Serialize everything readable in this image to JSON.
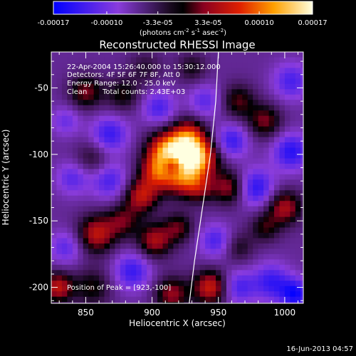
{
  "chart_data": {
    "type": "heatmap",
    "title": "Reconstructed RHESSI Image",
    "xlabel": "Heliocentric X (arcsec)",
    "ylabel": "Heliocentric Y (arcsec)",
    "xlim": [
      824,
      1014
    ],
    "ylim": [
      -212,
      -23
    ],
    "x_ticks": [
      850,
      900,
      950,
      1000
    ],
    "y_ticks": [
      -50,
      -100,
      -150,
      -200
    ],
    "colorbar": {
      "range": [
        -0.00017,
        0.00017
      ],
      "tick_values": [
        -0.00017,
        -0.0001,
        -3.3e-05,
        3.3e-05,
        0.0001,
        0.00017
      ],
      "tick_labels": [
        "-0.00017",
        "-0.00010",
        "-3.3e-05",
        "3.3e-05",
        "0.00010",
        "0.00017"
      ],
      "unit_label": "(photons cm",
      "unit_exp1": "-2",
      "unit_mid": " s",
      "unit_exp2": "-1",
      "unit_mid2": " asec",
      "unit_exp3": "-2",
      "unit_close": ")"
    },
    "annotations": {
      "time_range": "22-Apr-2004 15:26:40.000 to 15:30:12.000",
      "detectors": "Detectors: 4F 5F 6F 7F 8F, Att 0",
      "energy": "Energy Range: 12.0 - 25.0 keV",
      "method": "Clean",
      "total_counts": "Total counts: 2.43E+03",
      "peak": "Position of Peak = [923,-100]"
    },
    "peak": [
      923,
      -100
    ],
    "limb_curve": [
      [
        950,
        -23
      ],
      [
        948,
        -60
      ],
      [
        944,
        -100
      ],
      [
        938,
        -140
      ],
      [
        932,
        -180
      ],
      [
        928,
        -212
      ]
    ],
    "blobs": [
      {
        "x": 923,
        "y": -100,
        "v": 0.00017,
        "s": 11
      },
      {
        "x": 937,
        "y": -103,
        "v": 0.00012,
        "s": 10
      },
      {
        "x": 909,
        "y": -97,
        "v": 0.00011,
        "s": 10
      },
      {
        "x": 920,
        "y": -117,
        "v": 0.00011,
        "s": 10
      },
      {
        "x": 903,
        "y": -113,
        "v": 0.0001,
        "s": 9
      },
      {
        "x": 892,
        "y": -131,
        "v": 0.00011,
        "s": 9
      },
      {
        "x": 928,
        "y": -85,
        "v": 9e-05,
        "s": 9
      },
      {
        "x": 916,
        "y": -108,
        "v": -0.00012,
        "s": 6
      },
      {
        "x": 935,
        "y": -125,
        "v": 8e-05,
        "s": 8
      },
      {
        "x": 958,
        "y": -125,
        "v": 9e-05,
        "s": 9
      },
      {
        "x": 850,
        "y": -53,
        "v": 8e-05,
        "s": 9
      },
      {
        "x": 878,
        "y": -55,
        "v": 6e-05,
        "s": 9
      },
      {
        "x": 855,
        "y": -103,
        "v": 5e-05,
        "s": 9
      },
      {
        "x": 840,
        "y": -118,
        "v": -6e-05,
        "s": 9
      },
      {
        "x": 868,
        "y": -85,
        "v": -8e-05,
        "s": 10
      },
      {
        "x": 868,
        "y": -120,
        "v": -7e-05,
        "s": 10
      },
      {
        "x": 858,
        "y": -160,
        "v": 0.00011,
        "s": 10
      },
      {
        "x": 878,
        "y": -150,
        "v": 7e-05,
        "s": 9
      },
      {
        "x": 902,
        "y": -165,
        "v": 0.0001,
        "s": 9
      },
      {
        "x": 920,
        "y": -155,
        "v": 7e-05,
        "s": 8
      },
      {
        "x": 885,
        "y": -188,
        "v": -8e-05,
        "s": 10
      },
      {
        "x": 835,
        "y": -170,
        "v": -6e-05,
        "s": 9
      },
      {
        "x": 855,
        "y": -200,
        "v": 6e-05,
        "s": 10
      },
      {
        "x": 829,
        "y": -200,
        "v": 0.00011,
        "s": 8
      },
      {
        "x": 915,
        "y": -205,
        "v": 9e-05,
        "s": 9
      },
      {
        "x": 944,
        "y": -200,
        "v": 0.00012,
        "s": 9
      },
      {
        "x": 965,
        "y": -200,
        "v": -7e-05,
        "s": 9
      },
      {
        "x": 990,
        "y": -196,
        "v": -8e-05,
        "s": 10
      },
      {
        "x": 1008,
        "y": -205,
        "v": -0.0001,
        "s": 8
      },
      {
        "x": 1000,
        "y": -140,
        "v": 0.0001,
        "s": 9
      },
      {
        "x": 985,
        "y": -155,
        "v": 6e-05,
        "s": 8
      },
      {
        "x": 978,
        "y": -125,
        "v": -9e-05,
        "s": 10
      },
      {
        "x": 1005,
        "y": -98,
        "v": -9e-05,
        "s": 10
      },
      {
        "x": 985,
        "y": -75,
        "v": 8e-05,
        "s": 9
      },
      {
        "x": 965,
        "y": -60,
        "v": 7e-05,
        "s": 9
      },
      {
        "x": 1005,
        "y": -45,
        "v": -7e-05,
        "s": 10
      },
      {
        "x": 960,
        "y": -90,
        "v": -8e-05,
        "s": 9
      },
      {
        "x": 940,
        "y": -60,
        "v": -6e-05,
        "s": 9
      },
      {
        "x": 905,
        "y": -65,
        "v": -7e-05,
        "s": 9
      },
      {
        "x": 895,
        "y": -35,
        "v": 4e-05,
        "s": 9
      },
      {
        "x": 930,
        "y": -35,
        "v": 5e-05,
        "s": 8
      },
      {
        "x": 948,
        "y": -165,
        "v": -7e-05,
        "s": 9
      },
      {
        "x": 965,
        "y": -170,
        "v": 5e-05,
        "s": 8
      },
      {
        "x": 835,
        "y": -75,
        "v": -5e-05,
        "s": 8
      }
    ]
  },
  "footer": {
    "date": "16-Jun-2013 04:57"
  }
}
